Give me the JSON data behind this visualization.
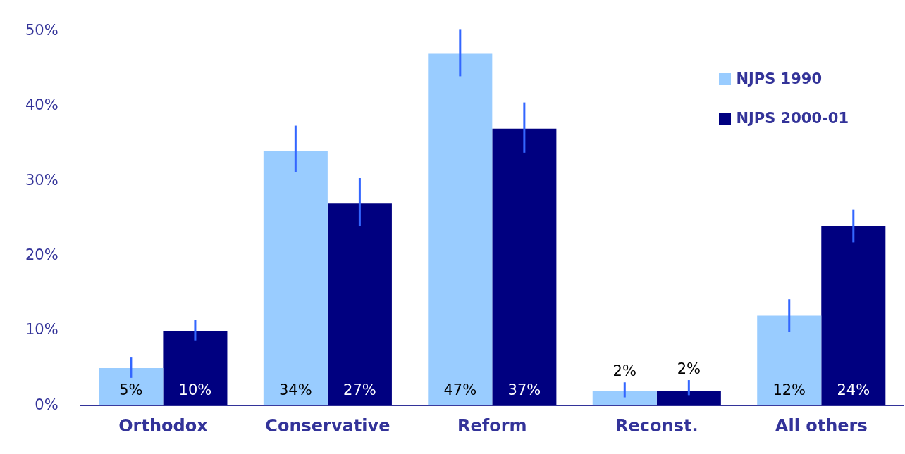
{
  "chart_data": {
    "type": "bar",
    "categories": [
      "Orthodox",
      "Conservative",
      "Reform",
      "Reconst.",
      "All others"
    ],
    "series": [
      {
        "name": "NJPS 1990",
        "color": "#99ccff",
        "values": [
          5,
          34,
          47,
          2,
          12
        ],
        "value_labels": [
          "5%",
          "34%",
          "47%",
          "2%",
          "12%"
        ],
        "errors": [
          [
            3.7,
            6.5
          ],
          [
            31.2,
            37.4
          ],
          [
            44,
            50.3
          ],
          [
            1.1,
            3.1
          ],
          [
            9.8,
            14.2
          ]
        ]
      },
      {
        "name": "NJPS 2000-01",
        "color": "#000080",
        "values": [
          10,
          27,
          37,
          2,
          24
        ],
        "value_labels": [
          "10%",
          "27%",
          "37%",
          "2%",
          "24%"
        ],
        "errors": [
          [
            8.7,
            11.4
          ],
          [
            24,
            30.4
          ],
          [
            33.8,
            40.5
          ],
          [
            1.4,
            3.4
          ],
          [
            21.8,
            26.2
          ]
        ]
      }
    ],
    "ylim": [
      0,
      50
    ],
    "yticks": [
      {
        "value": 0,
        "label": "0%"
      },
      {
        "value": 10,
        "label": "10%"
      },
      {
        "value": 20,
        "label": "20%"
      },
      {
        "value": 30,
        "label": "30%"
      },
      {
        "value": 40,
        "label": "40%"
      },
      {
        "value": 50,
        "label": "50%"
      }
    ],
    "grid": false,
    "legend": "top right"
  }
}
